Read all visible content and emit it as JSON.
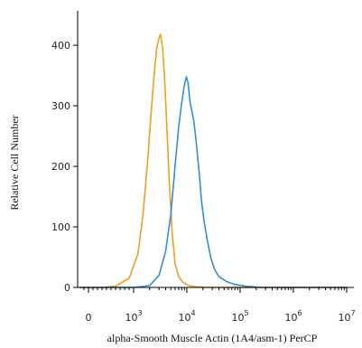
{
  "chart_data": {
    "type": "line",
    "xlabel": "alpha-Smooth Muscle Actin (1A4/asm-1) PerCP",
    "ylabel": "Relative Cell Number",
    "x_scale": "biexponential",
    "x_ticks": [
      {
        "base": "0",
        "exp": ""
      },
      {
        "base": "10",
        "exp": "3"
      },
      {
        "base": "10",
        "exp": "4"
      },
      {
        "base": "10",
        "exp": "5"
      },
      {
        "base": "10",
        "exp": "6"
      },
      {
        "base": "10",
        "exp": "7"
      }
    ],
    "y_ticks": [
      "0",
      "100",
      "200",
      "300",
      "400"
    ],
    "ylim": [
      0,
      430
    ],
    "grid": false,
    "series": [
      {
        "color": "#f39c1f",
        "points": [
          [
            -200,
            0
          ],
          [
            300,
            0
          ],
          [
            600,
            2
          ],
          [
            900,
            15
          ],
          [
            1200,
            55
          ],
          [
            1500,
            120
          ],
          [
            1800,
            200
          ],
          [
            2100,
            280
          ],
          [
            2400,
            345
          ],
          [
            2700,
            395
          ],
          [
            3000,
            412
          ],
          [
            3200,
            418
          ],
          [
            3500,
            395
          ],
          [
            3800,
            350
          ],
          [
            4200,
            265
          ],
          [
            4700,
            170
          ],
          [
            5300,
            90
          ],
          [
            6000,
            40
          ],
          [
            7000,
            18
          ],
          [
            8500,
            8
          ],
          [
            11000,
            3
          ],
          [
            15000,
            1
          ],
          [
            25000,
            0
          ],
          [
            1000000,
            0
          ],
          [
            10000000,
            0
          ]
        ]
      },
      {
        "color": "#2f8fd8",
        "points": [
          [
            -200,
            0
          ],
          [
            1000,
            0
          ],
          [
            2000,
            3
          ],
          [
            3000,
            20
          ],
          [
            4000,
            60
          ],
          [
            5000,
            120
          ],
          [
            6000,
            200
          ],
          [
            7000,
            265
          ],
          [
            8000,
            305
          ],
          [
            9000,
            335
          ],
          [
            9800,
            348
          ],
          [
            10500,
            338
          ],
          [
            11500,
            305
          ],
          [
            12500,
            290
          ],
          [
            13500,
            275
          ],
          [
            15000,
            240
          ],
          [
            17000,
            190
          ],
          [
            19000,
            140
          ],
          [
            21000,
            110
          ],
          [
            24000,
            80
          ],
          [
            28000,
            50
          ],
          [
            33000,
            30
          ],
          [
            40000,
            18
          ],
          [
            55000,
            10
          ],
          [
            80000,
            5
          ],
          [
            130000,
            2
          ],
          [
            250000,
            0
          ],
          [
            10000000,
            0
          ]
        ]
      }
    ]
  }
}
